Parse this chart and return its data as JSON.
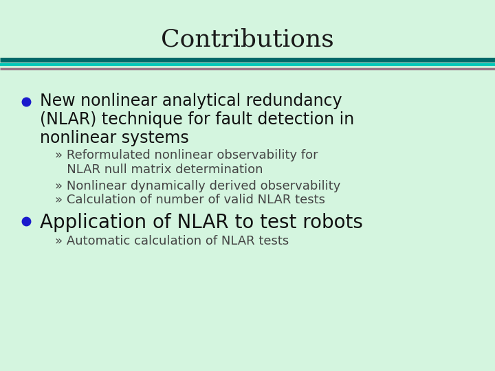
{
  "title": "Contributions",
  "title_fontsize": 26,
  "title_color": "#1a1a1a",
  "title_font": "serif",
  "bg_color": "#d4f5df",
  "bullet_color": "#1a1acc",
  "bullet1_text_line1": "New nonlinear analytical redundancy",
  "bullet1_text_line2": "(NLAR) technique for fault detection in",
  "bullet1_text_line3": "nonlinear systems",
  "bullet1_fontsize": 17,
  "sub1_line1": "» Reformulated nonlinear observability for",
  "sub1_line2": "   NLAR null matrix determination",
  "sub2": "» Nonlinear dynamically derived observability",
  "sub3": "» Calculation of number of valid NLAR tests",
  "sub_fontsize": 13,
  "bullet2_text": "Application of NLAR to test robots",
  "bullet2_fontsize": 20,
  "sub4": "» Automatic calculation of NLAR tests",
  "text_color": "#111111",
  "sub_color": "#444444",
  "sep_color1": "#006868",
  "sep_color2": "#00c8b8",
  "sep_color3": "#997788"
}
